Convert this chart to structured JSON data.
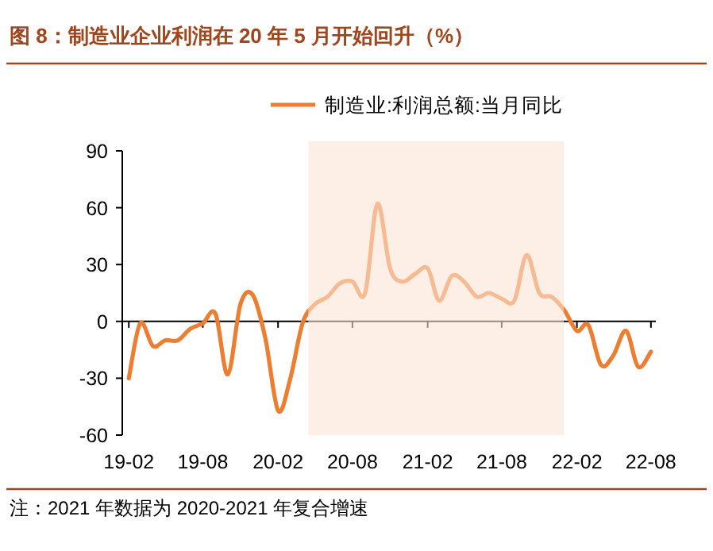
{
  "chart_data": {
    "type": "line",
    "title": "图 8：制造业企业利润在 20 年 5 月开始回升（%）",
    "x": [
      "2019-02",
      "2019-03",
      "2019-04",
      "2019-05",
      "2019-06",
      "2019-07",
      "2019-08",
      "2019-09",
      "2019-10",
      "2019-11",
      "2019-12",
      "2020-01",
      "2020-02",
      "2020-03",
      "2020-04",
      "2020-05",
      "2020-06",
      "2020-07",
      "2020-08",
      "2020-09",
      "2020-10",
      "2020-11",
      "2020-12",
      "2021-01",
      "2021-02",
      "2021-03",
      "2021-04",
      "2021-05",
      "2021-06",
      "2021-07",
      "2021-08",
      "2021-09",
      "2021-10",
      "2021-11",
      "2021-12",
      "2022-01",
      "2022-02",
      "2022-03",
      "2022-04",
      "2022-05",
      "2022-06",
      "2022-07",
      "2022-08"
    ],
    "series": [
      {
        "name": "制造业:利润总额:当月同比",
        "color": "#ed7d31",
        "values": [
          -30,
          -1,
          -13,
          -10,
          -10,
          -4,
          -1,
          4,
          -28,
          9,
          14,
          -9,
          -47,
          -31,
          -1,
          9,
          13,
          20,
          21,
          15,
          62,
          28,
          21,
          25,
          28,
          11,
          24,
          21,
          13,
          15,
          12,
          11,
          35,
          15,
          13,
          6,
          -5,
          -2,
          -23,
          -18,
          -5,
          -24,
          -16
        ]
      }
    ],
    "xlim": [
      "2019-01-16",
      "2022-08-13"
    ],
    "xticks": [
      {
        "value": "2019-02",
        "label": "19-02"
      },
      {
        "value": "2019-08",
        "label": "19-08"
      },
      {
        "value": "2020-02",
        "label": "20-02"
      },
      {
        "value": "2020-08",
        "label": "20-08"
      },
      {
        "value": "2021-02",
        "label": "21-02"
      },
      {
        "value": "2021-08",
        "label": "21-08"
      },
      {
        "value": "2022-02",
        "label": "22-02"
      },
      {
        "value": "2022-08",
        "label": "22-08"
      }
    ],
    "ylim": [
      -60,
      90
    ],
    "yticks": [
      -60,
      -30,
      0,
      30,
      60,
      90
    ],
    "bands": [
      {
        "axis": "x",
        "from": "2020-04-15",
        "to": "2021-12-31",
        "color": "#fbe5d6"
      }
    ],
    "legend": "top",
    "annotations": [
      "注：2021 年数据为 2020-2021 年复合增速"
    ]
  }
}
